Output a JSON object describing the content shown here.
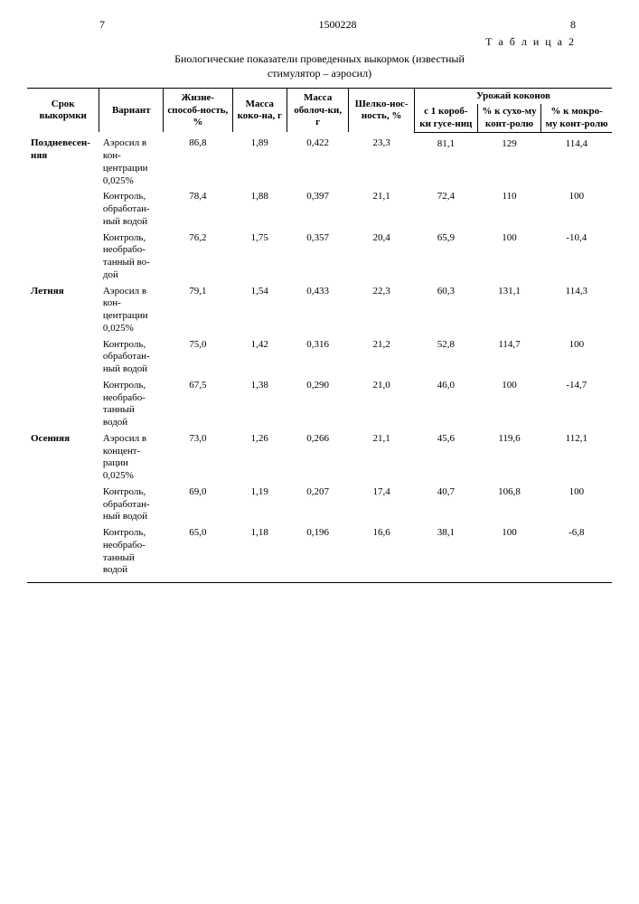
{
  "header": {
    "page_left": "7",
    "doc_number": "1500228",
    "page_right": "8",
    "table_label": "Т а б л и ц а 2",
    "caption_line1": "Биологические показатели проведенных выкормок (известный",
    "caption_line2": "стимулятор – аэросил)"
  },
  "columns": {
    "c0": "Срок выкормки",
    "c1": "Вариант",
    "c2": "Жизне-способ-ность, %",
    "c3": "Масса коко-на, г",
    "c4": "Масса оболоч-ки, г",
    "c5": "Шелко-нос-ность, %",
    "group": "Урожай коконов",
    "c6": "с 1 короб-ки гусе-ниц",
    "c7": "% к сухо-му конт-ролю",
    "c8": "% к мокро-му конт-ролю"
  },
  "rows": [
    {
      "period": "Поздневесен-няя",
      "variant": "Аэросил в кон-центрации 0,025%",
      "v": [
        "86,8",
        "1,89",
        "0,422",
        "23,3",
        "81,1",
        "129",
        "114,4"
      ]
    },
    {
      "period": "",
      "variant": "Контроль, обработан-ный водой",
      "v": [
        "78,4",
        "1,88",
        "0,397",
        "21,1",
        "72,4",
        "110",
        "100"
      ]
    },
    {
      "period": "",
      "variant": "Контроль, необрабо-танный во-дой",
      "v": [
        "76,2",
        "1,75",
        "0,357",
        "20,4",
        "65,9",
        "100",
        "-10,4"
      ]
    },
    {
      "period": "Летняя",
      "variant": "Аэросил в кон-центрации 0,025%",
      "v": [
        "79,1",
        "1,54",
        "0,433",
        "22,3",
        "60,3",
        "131,1",
        "114,3"
      ]
    },
    {
      "period": "",
      "variant": "Контроль, обработан-ный водой",
      "v": [
        "75,0",
        "1,42",
        "0,316",
        "21,2",
        "52,8",
        "114,7",
        "100"
      ]
    },
    {
      "period": "",
      "variant": "Контроль, необрабо-танный водой",
      "v": [
        "67,5",
        "1,38",
        "0,290",
        "21,0",
        "46,0",
        "100",
        "-14,7"
      ]
    },
    {
      "period": "Осенняя",
      "variant": "Аэросил в концент-рации 0,025%",
      "v": [
        "73,0",
        "1,26",
        "0,266",
        "21,1",
        "45,6",
        "119,6",
        "112,1"
      ]
    },
    {
      "period": "",
      "variant": "Контроль, обработан-ный водой",
      "v": [
        "69,0",
        "1,19",
        "0,207",
        "17,4",
        "40,7",
        "106,8",
        "100"
      ]
    },
    {
      "period": "",
      "variant": "Контроль, необрабо-танный водой",
      "v": [
        "65,0",
        "1,18",
        "0,196",
        "16,6",
        "38,1",
        "100",
        "-6,8"
      ]
    }
  ]
}
